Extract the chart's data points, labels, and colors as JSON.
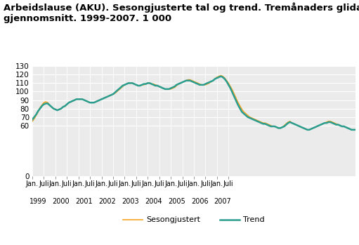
{
  "title": "Arbeidslause (AKU). Sesongjusterte tal og trend. Tremånaders glidande\ngjennomsnitt. 1999-2007. 1 000",
  "ylim": [
    0,
    130
  ],
  "yticks": [
    0,
    60,
    70,
    80,
    90,
    100,
    110,
    120,
    130
  ],
  "background_color": "#ffffff",
  "plot_bg_color": "#ebebeb",
  "line_seasonal_color": "#f5a623",
  "line_trend_color": "#2a9d8f",
  "line_seasonal_label": "Sesongjustert",
  "line_trend_label": "Trend",
  "title_fontsize": 9.5,
  "seasonal": [
    65,
    68,
    72,
    76,
    81,
    84,
    87,
    88,
    87,
    84,
    82,
    80,
    79,
    78,
    79,
    80,
    82,
    83,
    85,
    87,
    88,
    89,
    90,
    91,
    91,
    91,
    91,
    90,
    89,
    88,
    87,
    87,
    87,
    88,
    89,
    90,
    91,
    92,
    93,
    94,
    95,
    96,
    97,
    98,
    100,
    102,
    104,
    106,
    108,
    109,
    110,
    110,
    110,
    109,
    108,
    107,
    107,
    108,
    108,
    109,
    110,
    110,
    109,
    109,
    108,
    107,
    106,
    105,
    104,
    103,
    103,
    103,
    103,
    104,
    105,
    107,
    109,
    110,
    111,
    112,
    113,
    114,
    114,
    113,
    112,
    111,
    110,
    109,
    108,
    108,
    108,
    109,
    110,
    112,
    113,
    115,
    117,
    118,
    119,
    118,
    116,
    113,
    110,
    106,
    102,
    97,
    92,
    87,
    83,
    79,
    76,
    74,
    72,
    70,
    69,
    68,
    67,
    66,
    65,
    64,
    63,
    63,
    62,
    61,
    60,
    59,
    59,
    58,
    57,
    57,
    58,
    60,
    62,
    64,
    65,
    63,
    62,
    61,
    60,
    59,
    58,
    57,
    56,
    55,
    55,
    56,
    57,
    58,
    59,
    60,
    61,
    62,
    63,
    64,
    65,
    65,
    64,
    63,
    62,
    61,
    60,
    59,
    59,
    58,
    57,
    56,
    55,
    55,
    55
  ],
  "trend": [
    67,
    70,
    73,
    77,
    80,
    83,
    85,
    86,
    86,
    84,
    82,
    80,
    79,
    78,
    79,
    80,
    82,
    83,
    85,
    87,
    88,
    89,
    90,
    91,
    91,
    91,
    91,
    90,
    89,
    88,
    87,
    87,
    87,
    88,
    89,
    90,
    91,
    92,
    93,
    94,
    95,
    96,
    97,
    99,
    101,
    103,
    105,
    107,
    108,
    109,
    110,
    110,
    110,
    109,
    108,
    107,
    107,
    108,
    109,
    109,
    110,
    110,
    109,
    108,
    107,
    107,
    106,
    105,
    104,
    103,
    103,
    103,
    104,
    105,
    106,
    108,
    109,
    110,
    111,
    112,
    113,
    113,
    113,
    112,
    111,
    110,
    109,
    108,
    108,
    108,
    109,
    110,
    111,
    112,
    113,
    115,
    116,
    117,
    118,
    117,
    115,
    112,
    108,
    104,
    99,
    94,
    89,
    84,
    80,
    76,
    74,
    72,
    70,
    69,
    68,
    67,
    66,
    65,
    64,
    63,
    62,
    62,
    61,
    60,
    59,
    59,
    59,
    58,
    57,
    57,
    58,
    59,
    61,
    63,
    64,
    63,
    62,
    61,
    60,
    59,
    58,
    57,
    56,
    55,
    55,
    56,
    57,
    58,
    59,
    60,
    61,
    62,
    63,
    63,
    64,
    64,
    63,
    62,
    61,
    61,
    60,
    59,
    59,
    58,
    57,
    56,
    55,
    55,
    55
  ]
}
